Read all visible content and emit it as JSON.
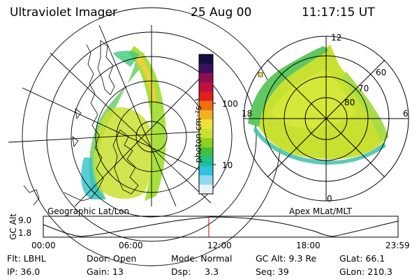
{
  "header": {
    "instrument": "Ultraviolet Imager",
    "date": "25 Aug 00",
    "time": "11:17:15 UT"
  },
  "left_panel": {
    "caption": "Geographic Lat/Lon"
  },
  "right_panel": {
    "caption": "Apex MLat/MLT",
    "mlt_labels": [
      "12",
      "18",
      "6",
      "0"
    ],
    "lat_labels": [
      "60",
      "70",
      "80"
    ]
  },
  "colorbar": {
    "unit_label": "photon cm⁻²s⁻¹",
    "tick_labels": [
      "100",
      "10"
    ],
    "scale": "log",
    "colors": [
      "#101040",
      "#3a1060",
      "#8a1050",
      "#c01040",
      "#e02020",
      "#f07010",
      "#f0b020",
      "#f0e040",
      "#c8e030",
      "#90d020",
      "#40c040",
      "#20c090",
      "#30c0e0",
      "#90d8f0",
      "#e8f4f8"
    ]
  },
  "altitude_strip": {
    "ylabel": "GC Alt",
    "y_ticks": [
      "9.0",
      "1.8"
    ],
    "x_ticks": [
      "00:00",
      "06:00",
      "12:00",
      "18:00",
      "23:59"
    ],
    "current_time_marker_color": "#cc0000"
  },
  "footer": {
    "row1": [
      {
        "label": "Flt:",
        "value": "LBHL"
      },
      {
        "label": "Door:",
        "value": "Open"
      },
      {
        "label": "Mode:",
        "value": "Normal"
      },
      {
        "label": "GC Alt:",
        "value": "9.3 Re"
      },
      {
        "label": "GLat:",
        "value": "66.1"
      }
    ],
    "row2": [
      {
        "label": "IP:",
        "value": "36.0"
      },
      {
        "label": "Gain:",
        "value": "13"
      },
      {
        "label": "Dsp:",
        "value": "3.3"
      },
      {
        "label": "Seq:",
        "value": "39"
      },
      {
        "label": "GLon:",
        "value": "210.3"
      }
    ]
  }
}
